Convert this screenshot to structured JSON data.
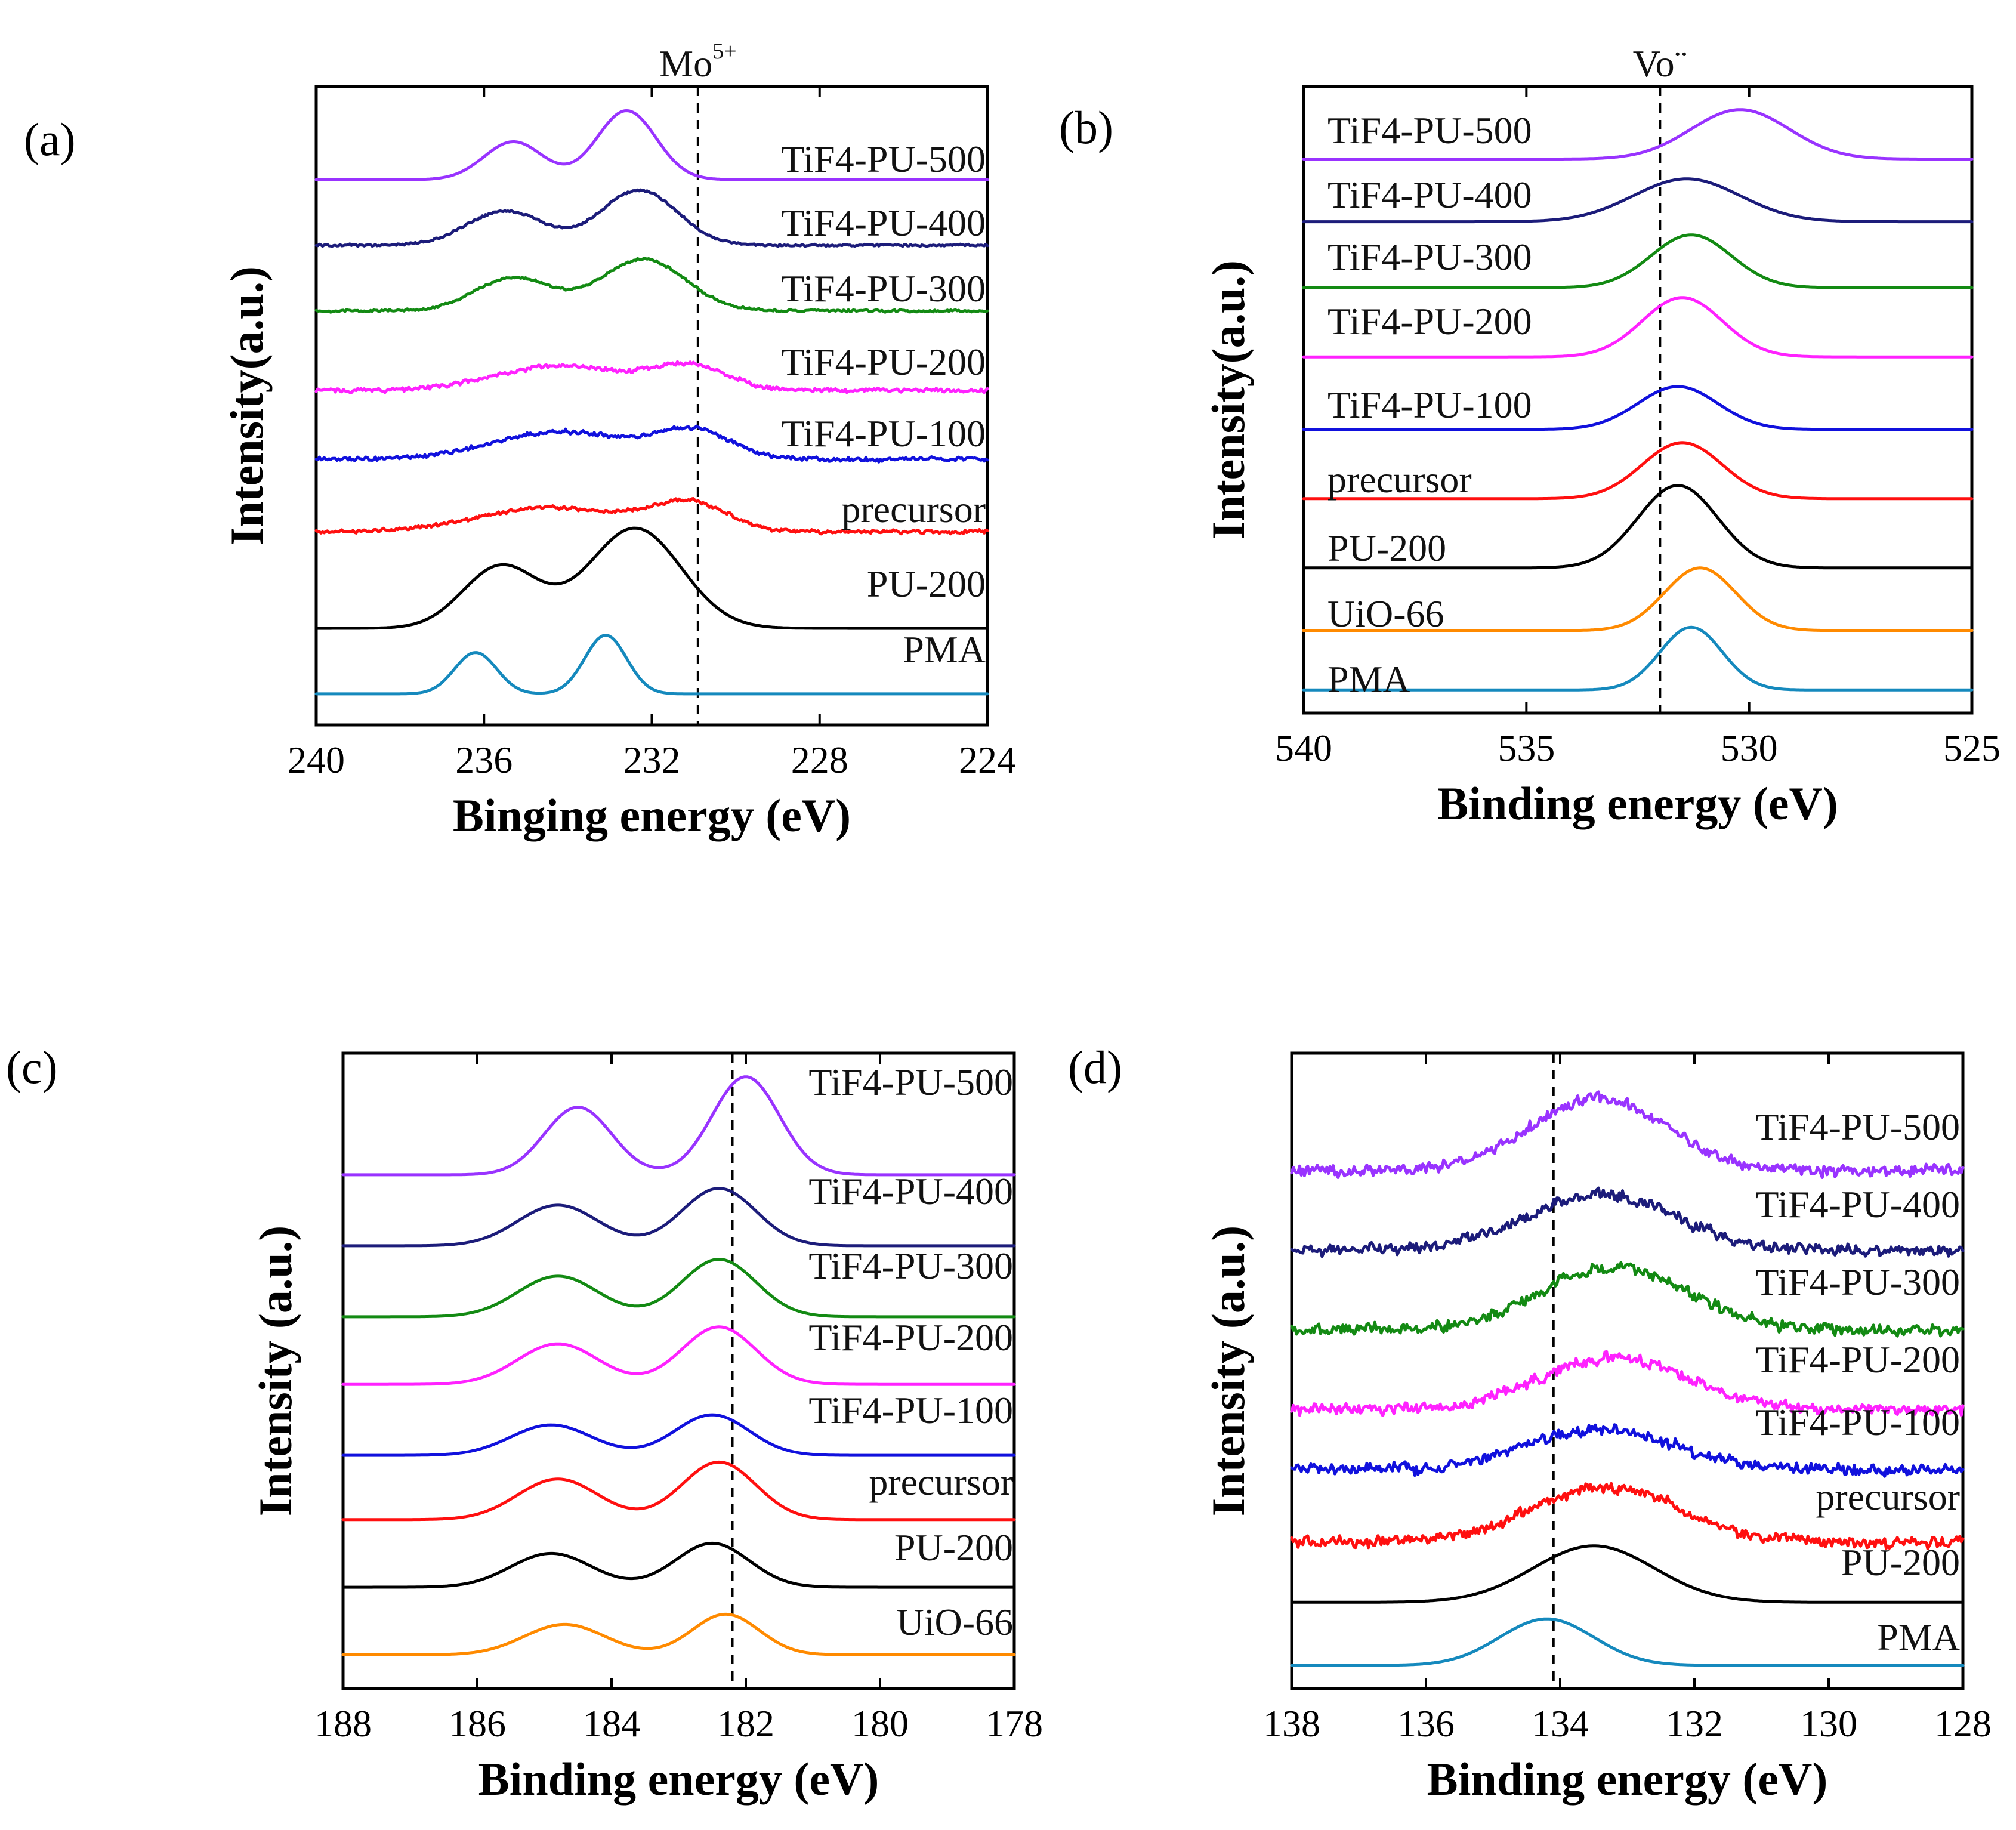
{
  "figure": {
    "description_note": ""
  },
  "chart_data": [
    {
      "type": "line",
      "panel_label": "(a)",
      "xlabel": "Binging energy (eV)",
      "ylabel": "Intensity(a.u.)",
      "xlim": [
        240,
        224
      ],
      "xticks": [
        240,
        236,
        232,
        228,
        224
      ],
      "reference_line": {
        "x": 230.9,
        "label": "Mo",
        "label_sup": "5+"
      },
      "series": [
        {
          "name": "TiF4-PU-500",
          "color": "#9933ff",
          "offset": 7.6,
          "noise": 0.0,
          "peaks": [
            {
              "c": 235.3,
              "w": 0.7,
              "h": 0.55
            },
            {
              "c": 232.6,
              "w": 0.7,
              "h": 1.0
            }
          ]
        },
        {
          "name": "TiF4-PU-400",
          "color": "#1c1c7a",
          "offset": 6.65,
          "noise": 0.03,
          "peaks": [
            {
              "c": 235.5,
              "w": 0.9,
              "h": 0.5
            },
            {
              "c": 232.3,
              "w": 0.9,
              "h": 0.8
            }
          ]
        },
        {
          "name": "TiF4-PU-300",
          "color": "#138a13",
          "offset": 5.7,
          "noise": 0.03,
          "peaks": [
            {
              "c": 235.3,
              "w": 0.9,
              "h": 0.48
            },
            {
              "c": 232.2,
              "w": 1.0,
              "h": 0.75
            }
          ]
        },
        {
          "name": "TiF4-PU-200",
          "color": "#ff22ff",
          "offset": 4.55,
          "noise": 0.06,
          "peaks": [
            {
              "c": 234.2,
              "w": 1.5,
              "h": 0.35
            },
            {
              "c": 231.1,
              "w": 0.9,
              "h": 0.35
            }
          ]
        },
        {
          "name": "TiF4-PU-100",
          "color": "#1111dd",
          "offset": 3.55,
          "noise": 0.06,
          "peaks": [
            {
              "c": 234.2,
              "w": 1.6,
              "h": 0.4
            },
            {
              "c": 231.0,
              "w": 0.9,
              "h": 0.4
            }
          ]
        },
        {
          "name": "precursor",
          "color": "#ff1010",
          "offset": 2.5,
          "noise": 0.05,
          "peaks": [
            {
              "c": 234.4,
              "w": 1.7,
              "h": 0.35
            },
            {
              "c": 231.1,
              "w": 0.9,
              "h": 0.4
            }
          ]
        },
        {
          "name": "PU-200",
          "color": "#000000",
          "offset": 1.1,
          "noise": 0.0,
          "peaks": [
            {
              "c": 235.6,
              "w": 0.9,
              "h": 0.9
            },
            {
              "c": 232.4,
              "w": 1.1,
              "h": 1.45
            }
          ]
        },
        {
          "name": "PMA",
          "color": "#1589bd",
          "offset": 0.15,
          "noise": 0.0,
          "peaks": [
            {
              "c": 236.2,
              "w": 0.5,
              "h": 0.6
            },
            {
              "c": 233.1,
              "w": 0.5,
              "h": 0.85
            }
          ]
        }
      ]
    },
    {
      "type": "line",
      "panel_label": "(b)",
      "xlabel": "Binding energy (eV)",
      "ylabel": "Intensity(a.u.)",
      "xlim": [
        540,
        525
      ],
      "xticks": [
        540,
        535,
        530,
        525
      ],
      "reference_line": {
        "x": 532.0,
        "label": "Vo¨",
        "label_sup": ""
      },
      "series": [
        {
          "name": "TiF4-PU-500",
          "color": "#9933ff",
          "offset": 8.1,
          "noise": 0.0,
          "peaks": [
            {
              "c": 530.2,
              "w": 1.1,
              "h": 0.75
            }
          ]
        },
        {
          "name": "TiF4-PU-400",
          "color": "#1c1c7a",
          "offset": 7.15,
          "noise": 0.0,
          "peaks": [
            {
              "c": 531.4,
              "w": 1.2,
              "h": 0.65
            }
          ]
        },
        {
          "name": "TiF4-PU-300",
          "color": "#138a13",
          "offset": 6.15,
          "noise": 0.0,
          "peaks": [
            {
              "c": 531.3,
              "w": 0.9,
              "h": 0.8
            }
          ]
        },
        {
          "name": "TiF4-PU-200",
          "color": "#ff22ff",
          "offset": 5.1,
          "noise": 0.0,
          "peaks": [
            {
              "c": 531.5,
              "w": 0.9,
              "h": 0.9
            }
          ]
        },
        {
          "name": "TiF4-PU-100",
          "color": "#1111dd",
          "offset": 4.0,
          "noise": 0.0,
          "peaks": [
            {
              "c": 531.6,
              "w": 0.9,
              "h": 0.65
            }
          ]
        },
        {
          "name": "precursor",
          "color": "#ff1010",
          "offset": 2.95,
          "noise": 0.0,
          "peaks": [
            {
              "c": 531.5,
              "w": 0.9,
              "h": 0.85
            }
          ]
        },
        {
          "name": "PU-200",
          "color": "#000000",
          "offset": 1.9,
          "noise": 0.0,
          "peaks": [
            {
              "c": 531.6,
              "w": 0.9,
              "h": 1.25
            }
          ]
        },
        {
          "name": "UiO-66",
          "color": "#ff8a00",
          "offset": 0.95,
          "noise": 0.0,
          "peaks": [
            {
              "c": 531.1,
              "w": 0.8,
              "h": 0.95
            }
          ]
        },
        {
          "name": "PMA",
          "color": "#1589bd",
          "offset": 0.05,
          "noise": 0.0,
          "peaks": [
            {
              "c": 531.3,
              "w": 0.7,
              "h": 0.95
            }
          ]
        }
      ]
    },
    {
      "type": "line",
      "panel_label": "(c)",
      "xlabel": "Binding energy (eV)",
      "ylabel": "Intensity (a.u.)",
      "xlim": [
        188,
        178
      ],
      "xticks": [
        188,
        186,
        184,
        182,
        180,
        178
      ],
      "reference_line": {
        "x": 182.2,
        "label": "",
        "label_sup": ""
      },
      "series": [
        {
          "name": "TiF4-PU-500",
          "color": "#9933ff",
          "offset": 7.3,
          "noise": 0.0,
          "peaks": [
            {
              "c": 184.5,
              "w": 0.5,
              "h": 1.0
            },
            {
              "c": 182.0,
              "w": 0.5,
              "h": 1.45
            }
          ]
        },
        {
          "name": "TiF4-PU-400",
          "color": "#1c1c7a",
          "offset": 6.25,
          "noise": 0.0,
          "peaks": [
            {
              "c": 184.8,
              "w": 0.6,
              "h": 0.6
            },
            {
              "c": 182.4,
              "w": 0.55,
              "h": 0.85
            }
          ]
        },
        {
          "name": "TiF4-PU-300",
          "color": "#138a13",
          "offset": 5.2,
          "noise": 0.0,
          "peaks": [
            {
              "c": 184.8,
              "w": 0.6,
              "h": 0.6
            },
            {
              "c": 182.4,
              "w": 0.55,
              "h": 0.85
            }
          ]
        },
        {
          "name": "TiF4-PU-200",
          "color": "#ff22ff",
          "offset": 4.2,
          "noise": 0.0,
          "peaks": [
            {
              "c": 184.8,
              "w": 0.6,
              "h": 0.6
            },
            {
              "c": 182.4,
              "w": 0.55,
              "h": 0.85
            }
          ]
        },
        {
          "name": "TiF4-PU-100",
          "color": "#1111dd",
          "offset": 3.15,
          "noise": 0.0,
          "peaks": [
            {
              "c": 184.9,
              "w": 0.6,
              "h": 0.45
            },
            {
              "c": 182.5,
              "w": 0.55,
              "h": 0.6
            }
          ]
        },
        {
          "name": "precursor",
          "color": "#ff1010",
          "offset": 2.2,
          "noise": 0.0,
          "peaks": [
            {
              "c": 184.8,
              "w": 0.6,
              "h": 0.6
            },
            {
              "c": 182.4,
              "w": 0.55,
              "h": 0.85
            }
          ]
        },
        {
          "name": "PU-200",
          "color": "#000000",
          "offset": 1.2,
          "noise": 0.0,
          "peaks": [
            {
              "c": 184.9,
              "w": 0.6,
              "h": 0.5
            },
            {
              "c": 182.5,
              "w": 0.55,
              "h": 0.65
            }
          ]
        },
        {
          "name": "UiO-66",
          "color": "#ff8a00",
          "offset": 0.2,
          "noise": 0.0,
          "peaks": [
            {
              "c": 184.7,
              "w": 0.6,
              "h": 0.45
            },
            {
              "c": 182.3,
              "w": 0.5,
              "h": 0.6
            }
          ]
        }
      ]
    },
    {
      "type": "line",
      "panel_label": "(d)",
      "xlabel": "Binding energy (eV)",
      "ylabel": "Intensity (a.u.)",
      "xlim": [
        138,
        128
      ],
      "xticks": [
        138,
        136,
        134,
        132,
        130,
        128
      ],
      "reference_line": {
        "x": 134.1,
        "label": "",
        "label_sup": ""
      },
      "series": [
        {
          "name": "TiF4-PU-500",
          "color": "#9933ff",
          "offset": 7.5,
          "noise": 0.16,
          "peaks": [
            {
              "c": 133.4,
              "w": 1.0,
              "h": 1.1
            }
          ]
        },
        {
          "name": "TiF4-PU-400",
          "color": "#1c1c7a",
          "offset": 6.3,
          "noise": 0.16,
          "peaks": [
            {
              "c": 133.4,
              "w": 1.1,
              "h": 0.85
            }
          ]
        },
        {
          "name": "TiF4-PU-300",
          "color": "#138a13",
          "offset": 5.1,
          "noise": 0.16,
          "peaks": [
            {
              "c": 133.2,
              "w": 1.1,
              "h": 0.95
            }
          ]
        },
        {
          "name": "TiF4-PU-200",
          "color": "#ff22ff",
          "offset": 3.9,
          "noise": 0.16,
          "peaks": [
            {
              "c": 133.2,
              "w": 1.1,
              "h": 0.8
            }
          ]
        },
        {
          "name": "TiF4-PU-100",
          "color": "#1111dd",
          "offset": 3.0,
          "noise": 0.16,
          "peaks": [
            {
              "c": 133.4,
              "w": 1.1,
              "h": 0.6
            }
          ]
        },
        {
          "name": "precursor",
          "color": "#ff1010",
          "offset": 1.9,
          "noise": 0.16,
          "peaks": [
            {
              "c": 133.3,
              "w": 1.1,
              "h": 0.85
            }
          ]
        },
        {
          "name": "PU-200",
          "color": "#000000",
          "offset": 1.0,
          "noise": 0.0,
          "peaks": [
            {
              "c": 133.5,
              "w": 0.9,
              "h": 0.85
            }
          ]
        },
        {
          "name": "PMA",
          "color": "#1589bd",
          "offset": 0.05,
          "noise": 0.0,
          "peaks": [
            {
              "c": 134.2,
              "w": 0.7,
              "h": 0.7
            }
          ]
        }
      ]
    }
  ]
}
